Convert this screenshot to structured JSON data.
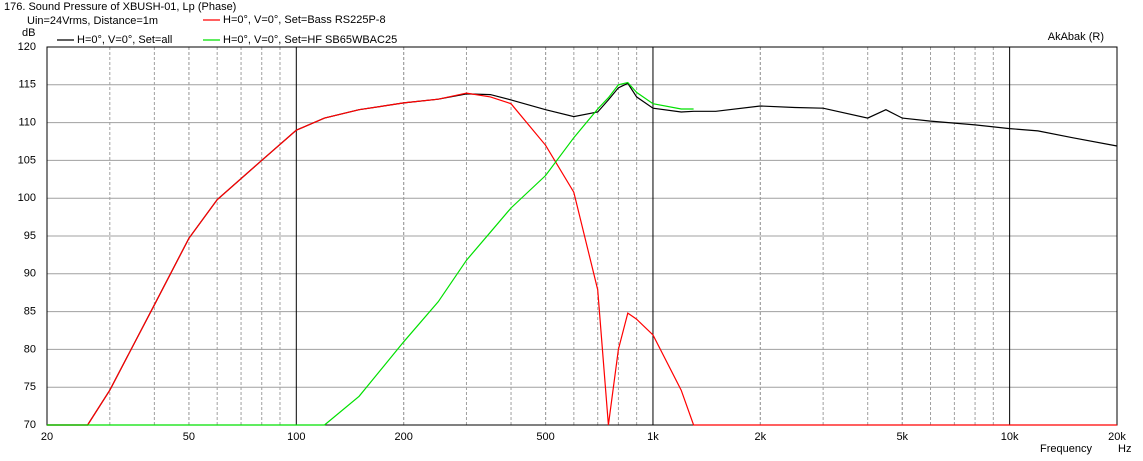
{
  "chart_data": {
    "type": "line",
    "title": "176. Sound Pressure of XBUSH-01, Lp (Phase)",
    "subtitle": "Uin=24Vrms, Distance=1m",
    "annotation": "AkAbak (R)",
    "y_label": "dB",
    "x_label": "Frequency",
    "x_unit": "Hz",
    "xscale": "log",
    "grid": true,
    "xlim": [
      20,
      20000
    ],
    "ylim": [
      70,
      120
    ],
    "xticks": [
      20,
      50,
      100,
      200,
      500,
      {
        "value": 1000,
        "label": "1k"
      },
      {
        "value": 2000,
        "label": "2k"
      },
      {
        "value": 5000,
        "label": "5k"
      },
      {
        "value": 10000,
        "label": "10k"
      },
      {
        "value": 20000,
        "label": "20k"
      }
    ],
    "yticks": [
      70,
      75,
      80,
      85,
      90,
      95,
      100,
      105,
      110,
      115,
      120
    ],
    "x": [
      20,
      26,
      30,
      40,
      50,
      60,
      80,
      100,
      120,
      150,
      200,
      250,
      300,
      350,
      400,
      500,
      600,
      700,
      750,
      800,
      850,
      900,
      1000,
      1200,
      1300,
      1500,
      2000,
      2500,
      3000,
      4000,
      4500,
      5000,
      6000,
      8000,
      10000,
      12000,
      15000,
      20000
    ],
    "series": [
      {
        "name": "H=0°, V=0°, Set=all",
        "color": "#000000",
        "values": [
          70,
          70,
          74.6,
          85.9,
          94.7,
          99.8,
          105,
          109,
          110.6,
          111.7,
          112.6,
          113.1,
          113.8,
          113.7,
          113,
          111.7,
          110.8,
          111.4,
          113,
          114.6,
          115.2,
          113.4,
          111.9,
          111.4,
          111.5,
          111.5,
          112.2,
          112,
          111.9,
          110.6,
          111.7,
          110.6,
          110.2,
          109.7,
          109.2,
          108.9,
          108,
          106.9
        ]
      },
      {
        "name": "H=0°, V=0°, Set=Bass RS225P-8",
        "color": "#ff0000",
        "values": [
          70,
          70,
          74.6,
          85.9,
          94.7,
          99.8,
          105,
          109,
          110.6,
          111.7,
          112.6,
          113.1,
          113.9,
          113.4,
          112.5,
          107,
          100.8,
          87.9,
          70,
          80,
          84.8,
          84,
          81.9,
          74.6,
          70,
          70,
          70,
          70,
          70,
          70,
          70,
          70,
          70,
          70,
          70,
          70,
          70,
          70
        ]
      },
      {
        "name": "H=0°, V=0°, Set=HF SB65WBAC25",
        "color": "#00e000",
        "values": [
          70,
          70,
          70,
          70,
          70,
          70,
          70,
          70,
          70,
          73.8,
          81,
          86.3,
          91.8,
          95.5,
          98.7,
          103,
          108,
          111.8,
          113.3,
          115,
          115.3,
          114,
          112.5,
          111.8,
          111.8,
          null,
          null,
          null,
          null,
          null,
          null,
          null,
          null,
          null,
          null,
          null,
          null,
          null
        ]
      }
    ]
  }
}
